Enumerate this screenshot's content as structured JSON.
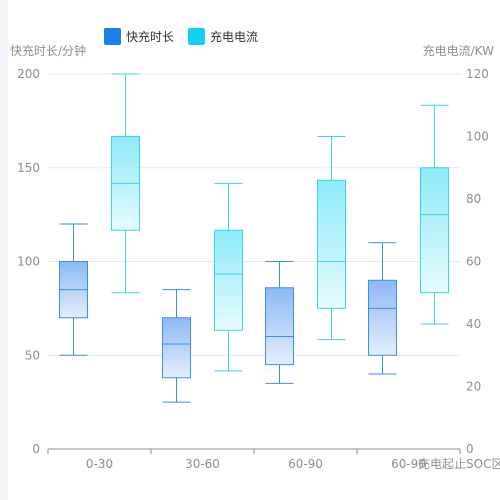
{
  "legend": {
    "series1": "快充时长",
    "series2": "充电电流"
  },
  "colors": {
    "series1": "#1e7ee8",
    "series2": "#12d0f0",
    "series1_stroke": "#3e8ee6",
    "series2_stroke": "#3cd3ea"
  },
  "axes": {
    "left_name": "快充时长/分钟",
    "right_name": "充电电流/KW",
    "x_name": "充电起止SOC区"
  },
  "chart_data": {
    "type": "boxplot",
    "categories": [
      "0-30",
      "30-60",
      "60-90",
      "60-90"
    ],
    "ylim_left": [
      0,
      200
    ],
    "yticks_left": [
      0,
      50,
      100,
      150,
      200
    ],
    "ylim_right": [
      0,
      120
    ],
    "yticks_right": [
      0,
      20,
      40,
      60,
      80,
      100,
      120
    ],
    "grid": true,
    "legend_position": "top-left",
    "series": [
      {
        "name": "快充时长",
        "axis": "left",
        "boxes": [
          {
            "min": 50,
            "q1": 70,
            "median": 85,
            "q3": 100,
            "max": 120
          },
          {
            "min": 25,
            "q1": 38,
            "median": 56,
            "q3": 70,
            "max": 85
          },
          {
            "min": 35,
            "q1": 45,
            "median": 60,
            "q3": 86,
            "max": 100
          },
          {
            "min": 40,
            "q1": 50,
            "median": 75,
            "q3": 90,
            "max": 110
          }
        ]
      },
      {
        "name": "充电电流",
        "axis": "right",
        "boxes": [
          {
            "min": 50,
            "q1": 70,
            "median": 85,
            "q3": 100,
            "max": 120
          },
          {
            "min": 25,
            "q1": 38,
            "median": 56,
            "q3": 70,
            "max": 85
          },
          {
            "min": 35,
            "q1": 45,
            "median": 60,
            "q3": 86,
            "max": 100
          },
          {
            "min": 40,
            "q1": 50,
            "median": 75,
            "q3": 90,
            "max": 110
          }
        ]
      }
    ]
  }
}
